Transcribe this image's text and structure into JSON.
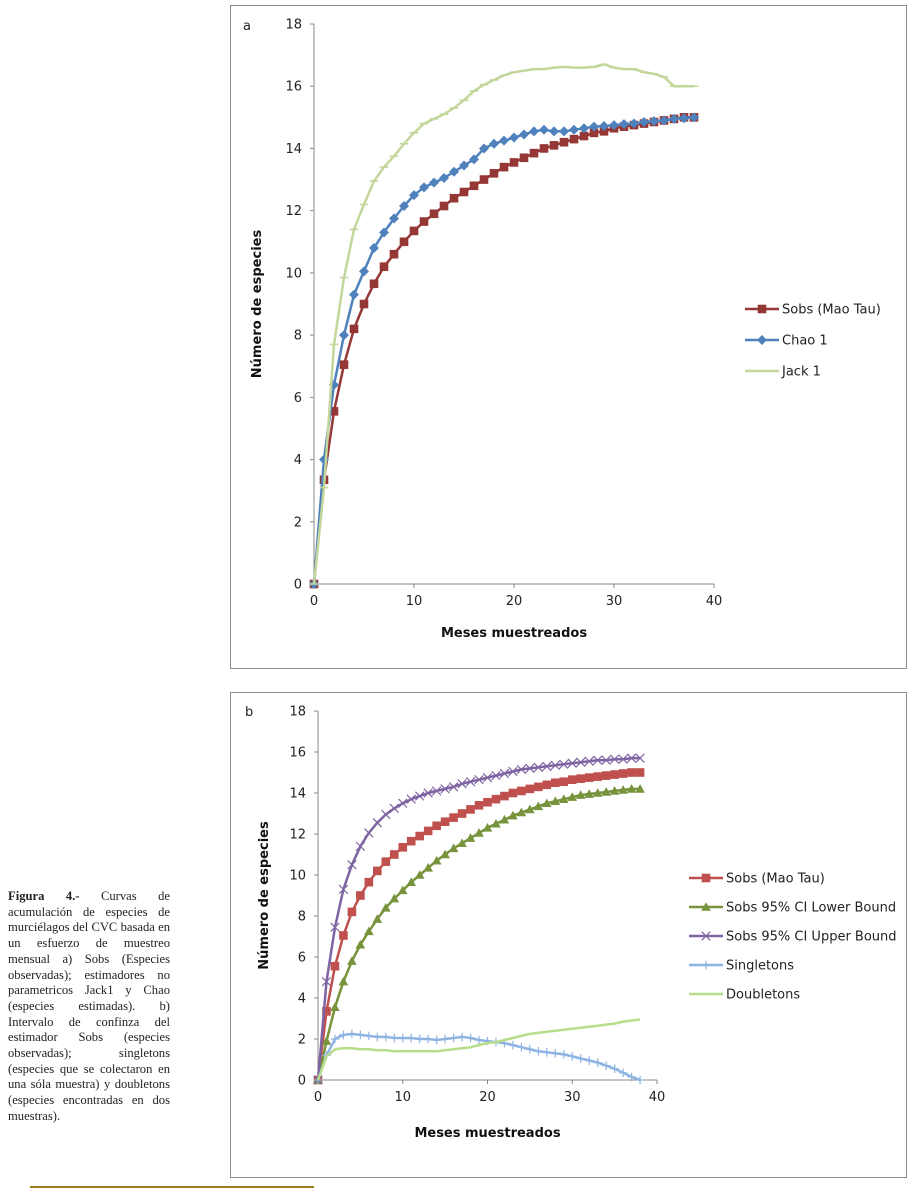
{
  "caption": {
    "label": "Figura 4.-",
    "text": "Curvas de acumulación de especies de murciélagos del CVC basada en un esfuerzo de muestreo mensual a) Sobs (Especies observadas); estimadores no parametricos Jack1 y Chao (especies estimadas). b) Intervalo de confinza del estimador Sobs (especies observadas); singletons (especies que se colectaron en una sóla muestra) y doubletons (especies encontradas en dos muestras)."
  },
  "chart_data": [
    {
      "type": "line",
      "panel_label": "a",
      "title": "",
      "xlabel": "Meses muestreados",
      "ylabel": "Número de especies",
      "xlim": [
        0,
        40
      ],
      "ylim": [
        0,
        18
      ],
      "xticks": [
        0,
        10,
        20,
        30,
        40
      ],
      "yticks": [
        0,
        2,
        4,
        6,
        8,
        10,
        12,
        14,
        16,
        18
      ],
      "legend_position": "right",
      "x": [
        0,
        1,
        2,
        3,
        4,
        5,
        6,
        7,
        8,
        9,
        10,
        11,
        12,
        13,
        14,
        15,
        16,
        17,
        18,
        19,
        20,
        21,
        22,
        23,
        24,
        25,
        26,
        27,
        28,
        29,
        30,
        31,
        32,
        33,
        34,
        35,
        36,
        37,
        38
      ],
      "series": [
        {
          "name": "Sobs (Mao Tau)",
          "color": "#953735",
          "marker": "square",
          "values": [
            0,
            3.35,
            5.55,
            7.05,
            8.2,
            9.0,
            9.65,
            10.2,
            10.6,
            11.0,
            11.35,
            11.65,
            11.9,
            12.15,
            12.4,
            12.6,
            12.8,
            13.0,
            13.2,
            13.4,
            13.55,
            13.7,
            13.85,
            14.0,
            14.1,
            14.2,
            14.3,
            14.4,
            14.5,
            14.55,
            14.65,
            14.7,
            14.75,
            14.8,
            14.85,
            14.9,
            14.95,
            15.0,
            15.0
          ]
        },
        {
          "name": "Chao 1",
          "color": "#4f81bd",
          "marker": "diamond",
          "values": [
            0,
            4.0,
            6.4,
            8.0,
            9.3,
            10.05,
            10.8,
            11.3,
            11.75,
            12.15,
            12.5,
            12.75,
            12.9,
            13.05,
            13.25,
            13.45,
            13.65,
            14.0,
            14.15,
            14.25,
            14.35,
            14.45,
            14.55,
            14.6,
            14.55,
            14.55,
            14.6,
            14.65,
            14.7,
            14.72,
            14.75,
            14.78,
            14.8,
            14.85,
            14.88,
            14.9,
            14.95,
            14.97,
            15.0
          ]
        },
        {
          "name": "Jack 1",
          "color": "#c3d69b",
          "marker": "dash",
          "values": [
            0,
            3.1,
            7.7,
            9.85,
            11.4,
            12.2,
            12.95,
            13.4,
            13.75,
            14.15,
            14.5,
            14.8,
            14.95,
            15.1,
            15.3,
            15.55,
            15.85,
            16.05,
            16.2,
            16.35,
            16.45,
            16.5,
            16.55,
            16.55,
            16.6,
            16.62,
            16.6,
            16.6,
            16.62,
            16.7,
            16.6,
            16.55,
            16.55,
            16.45,
            16.4,
            16.3,
            16.0,
            16.0,
            16.0
          ]
        }
      ]
    },
    {
      "type": "line",
      "panel_label": "b",
      "title": "",
      "xlabel": "Meses muestreados",
      "ylabel": "Número de especies",
      "xlim": [
        0,
        40
      ],
      "ylim": [
        0,
        18
      ],
      "xticks": [
        0,
        10,
        20,
        30,
        40
      ],
      "yticks": [
        0,
        2,
        4,
        6,
        8,
        10,
        12,
        14,
        16,
        18
      ],
      "legend_position": "right",
      "x": [
        0,
        1,
        2,
        3,
        4,
        5,
        6,
        7,
        8,
        9,
        10,
        11,
        12,
        13,
        14,
        15,
        16,
        17,
        18,
        19,
        20,
        21,
        22,
        23,
        24,
        25,
        26,
        27,
        28,
        29,
        30,
        31,
        32,
        33,
        34,
        35,
        36,
        37,
        38
      ],
      "series": [
        {
          "name": "Sobs (Mao Tau)",
          "color": "#c0504d",
          "marker": "square",
          "values": [
            0,
            3.35,
            5.55,
            7.05,
            8.2,
            9.0,
            9.65,
            10.2,
            10.65,
            11.0,
            11.35,
            11.65,
            11.9,
            12.15,
            12.4,
            12.6,
            12.8,
            13.0,
            13.2,
            13.4,
            13.55,
            13.7,
            13.85,
            14.0,
            14.1,
            14.2,
            14.3,
            14.4,
            14.5,
            14.55,
            14.65,
            14.7,
            14.75,
            14.8,
            14.85,
            14.9,
            14.95,
            15.0,
            15.0
          ]
        },
        {
          "name": "Sobs 95% CI Lower Bound",
          "color": "#77933c",
          "marker": "triangle",
          "values": [
            0,
            1.9,
            3.55,
            4.8,
            5.8,
            6.6,
            7.25,
            7.85,
            8.4,
            8.85,
            9.25,
            9.65,
            10.0,
            10.35,
            10.7,
            11.0,
            11.3,
            11.55,
            11.8,
            12.05,
            12.3,
            12.5,
            12.7,
            12.9,
            13.05,
            13.2,
            13.35,
            13.5,
            13.6,
            13.7,
            13.8,
            13.9,
            13.95,
            14.0,
            14.05,
            14.1,
            14.15,
            14.2,
            14.2
          ]
        },
        {
          "name": "Sobs 95% CI Upper Bound",
          "color": "#7f64a2",
          "marker": "cross",
          "values": [
            0,
            4.8,
            7.45,
            9.3,
            10.5,
            11.4,
            12.05,
            12.55,
            12.95,
            13.25,
            13.5,
            13.7,
            13.85,
            14.0,
            14.1,
            14.2,
            14.3,
            14.45,
            14.55,
            14.65,
            14.75,
            14.85,
            14.95,
            15.05,
            15.15,
            15.2,
            15.25,
            15.3,
            15.35,
            15.4,
            15.45,
            15.5,
            15.55,
            15.6,
            15.6,
            15.65,
            15.65,
            15.7,
            15.7
          ]
        },
        {
          "name": "Singletons",
          "color": "#8eb4e3",
          "marker": "plus",
          "values": [
            0,
            1.2,
            2.0,
            2.2,
            2.25,
            2.2,
            2.15,
            2.1,
            2.1,
            2.05,
            2.05,
            2.05,
            2.0,
            2.0,
            1.95,
            2.0,
            2.05,
            2.1,
            2.05,
            1.95,
            1.9,
            1.85,
            1.8,
            1.7,
            1.6,
            1.5,
            1.4,
            1.35,
            1.3,
            1.25,
            1.15,
            1.05,
            0.95,
            0.85,
            0.7,
            0.55,
            0.35,
            0.15,
            0.0
          ]
        },
        {
          "name": "Doubletons",
          "color": "#b7dd8b",
          "marker": "none",
          "values": [
            0,
            1.15,
            1.5,
            1.55,
            1.55,
            1.5,
            1.5,
            1.45,
            1.45,
            1.4,
            1.4,
            1.4,
            1.4,
            1.4,
            1.4,
            1.45,
            1.5,
            1.55,
            1.6,
            1.7,
            1.8,
            1.85,
            1.95,
            2.05,
            2.15,
            2.25,
            2.3,
            2.35,
            2.4,
            2.45,
            2.5,
            2.55,
            2.6,
            2.65,
            2.7,
            2.75,
            2.85,
            2.9,
            2.95
          ]
        }
      ]
    }
  ]
}
